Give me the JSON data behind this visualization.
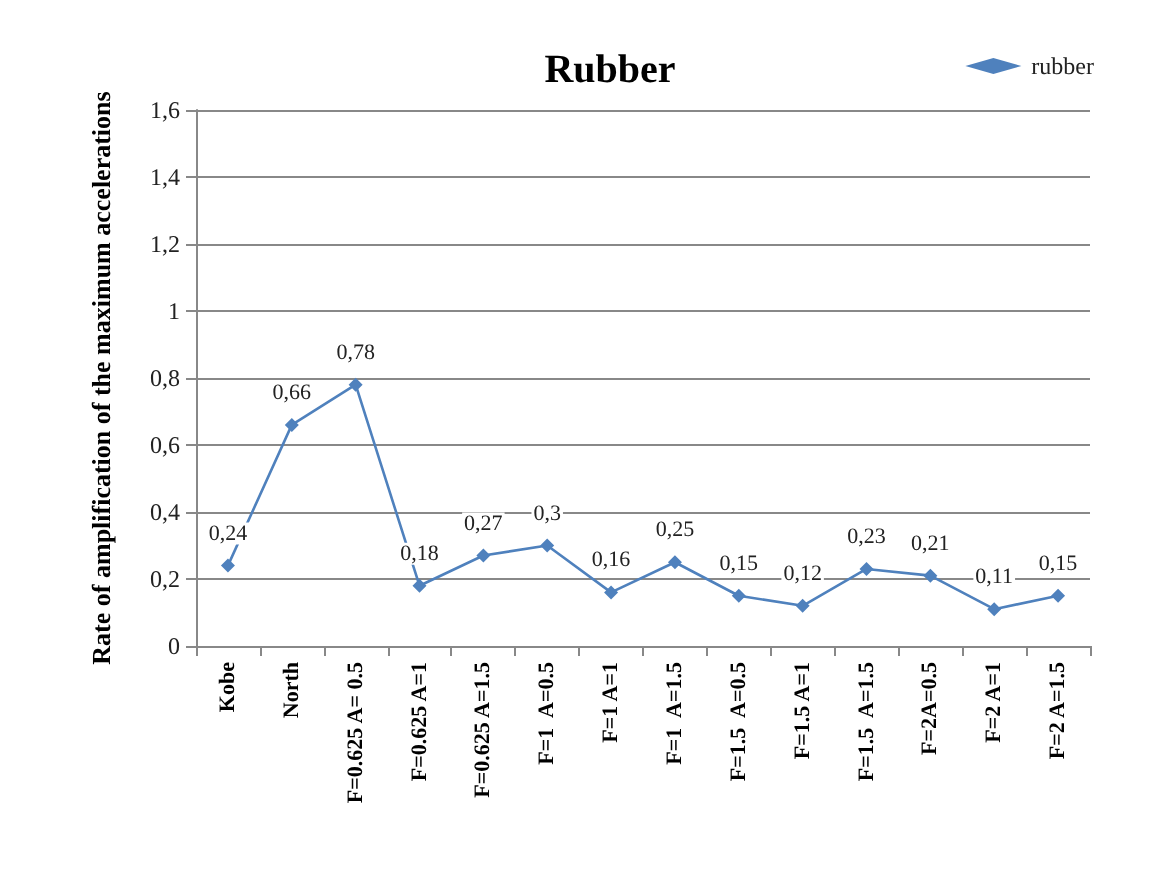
{
  "chart_data": {
    "type": "line",
    "title": "Rubber",
    "ylabel": "Rate of amplification of the maximum accelerations",
    "categories": [
      "Kobe",
      "North",
      "F=0.625 A= 0.5",
      "F=0.625 A=1",
      "F=0.625 A=1.5",
      "F=1  A=0.5",
      "F=1 A=1",
      "F=1  A=1.5",
      "F=1.5  A=0.5",
      "F=1.5 A=1",
      "F=1.5  A=1.5",
      "F=2A=0.5",
      "F=2 A=1",
      "F=2 A=1.5"
    ],
    "series": [
      {
        "name": "rubber",
        "color": "#4f81bd",
        "values": [
          0.24,
          0.66,
          0.78,
          0.18,
          0.27,
          0.3,
          0.16,
          0.25,
          0.15,
          0.12,
          0.23,
          0.21,
          0.11,
          0.15
        ],
        "value_labels": [
          "0,24",
          "0,66",
          "0,78",
          "0,18",
          "0,27",
          "0,3",
          "0,16",
          "0,25",
          "0,15",
          "0,12",
          "0,23",
          "0,21",
          "0,11",
          "0,15"
        ]
      }
    ],
    "ylim": [
      0,
      1.6
    ],
    "yticks": [
      {
        "value": 0,
        "label": "0"
      },
      {
        "value": 0.2,
        "label": "0,2"
      },
      {
        "value": 0.4,
        "label": "0,4"
      },
      {
        "value": 0.6,
        "label": "0,6"
      },
      {
        "value": 0.8,
        "label": "0,8"
      },
      {
        "value": 1,
        "label": "1"
      },
      {
        "value": 1.2,
        "label": "1,2"
      },
      {
        "value": 1.4,
        "label": "1,4"
      },
      {
        "value": 1.6,
        "label": "1,6"
      }
    ],
    "grid": "y",
    "legend": "top right",
    "marker": "diamond",
    "line_style": "solid"
  }
}
